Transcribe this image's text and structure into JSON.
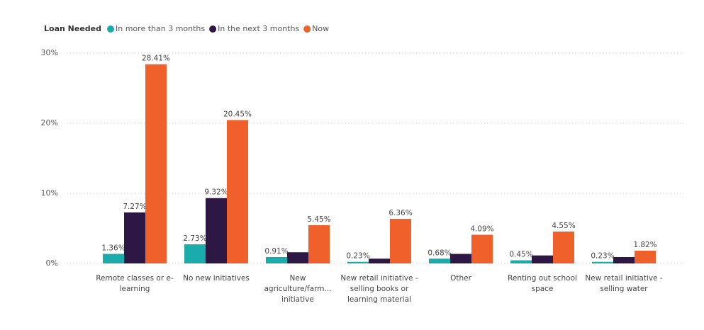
{
  "chart_data": {
    "type": "bar",
    "legend_title": "Loan Needed",
    "legend_position": "top-left",
    "categories": [
      "Remote classes or e-learning",
      "No new initiatives",
      "New agriculture/farm... initiative",
      "New retail initiative - selling books or learning material",
      "Other",
      "Renting out school space",
      "New retail initiative - selling water"
    ],
    "series": [
      {
        "name": "In more than 3 months",
        "color": "#1aabab",
        "values": [
          1.36,
          2.73,
          0.91,
          0.23,
          0.68,
          0.45,
          0.23
        ],
        "value_labels": [
          "1.36%",
          "2.73%",
          "0.91%",
          "0.23%",
          "0.68%",
          "0.45%",
          "0.23%"
        ]
      },
      {
        "name": "In the next 3 months",
        "color": "#2c1745",
        "values": [
          7.27,
          9.32,
          1.59,
          0.68,
          1.36,
          1.14,
          0.91
        ],
        "value_labels": [
          "7.27%",
          "9.32%",
          null,
          null,
          null,
          null,
          null
        ]
      },
      {
        "name": "Now",
        "color": "#f0602b",
        "values": [
          28.41,
          20.45,
          5.45,
          6.36,
          4.09,
          4.55,
          1.82
        ],
        "value_labels": [
          "28.41%",
          "20.45%",
          "5.45%",
          "6.36%",
          "4.09%",
          "4.55%",
          "1.82%"
        ]
      }
    ],
    "ylim": [
      0,
      30
    ],
    "yticks": [
      {
        "value": 0,
        "label": "0%"
      },
      {
        "value": 10,
        "label": "10%"
      },
      {
        "value": 20,
        "label": "20%"
      },
      {
        "value": 30,
        "label": "30%"
      }
    ],
    "grid": true
  }
}
